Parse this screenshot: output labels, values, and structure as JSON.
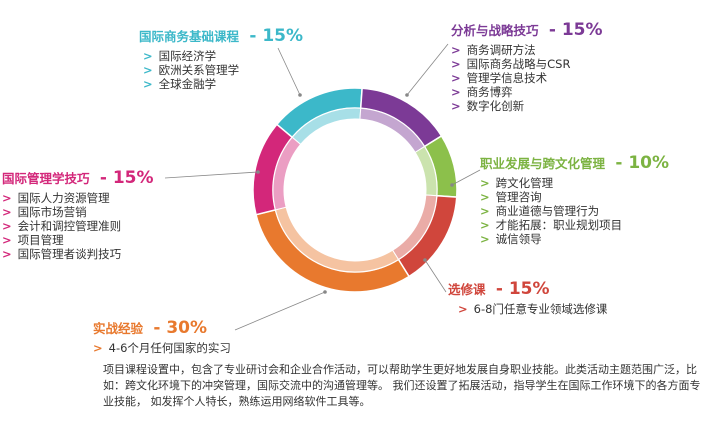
{
  "chart_data": {
    "type": "donut",
    "title": "",
    "segments": [
      {
        "name": "国际商务基础课程",
        "value": 15,
        "color": "#3cb8c9",
        "items": [
          "国际经济学",
          "欧洲关系管理学",
          "全球金融学"
        ]
      },
      {
        "name": "分析与战略技巧",
        "value": 15,
        "color": "#7c3a96",
        "items": [
          "商务调研方法",
          "国际商务战略与CSR",
          "管理学信息技术",
          "商务博弈",
          "数字化创新"
        ]
      },
      {
        "name": "职业发展与跨文化管理",
        "value": 10,
        "color": "#8cc04b",
        "items": [
          "跨文化管理",
          "管理咨询",
          "商业道德与管理行为",
          "才能拓展：职业规划项目",
          "诚信领导"
        ]
      },
      {
        "name": "选修课",
        "value": 15,
        "color": "#d0463c",
        "items": [
          "6-8门任意专业领域选修课"
        ]
      },
      {
        "name": "实战经验",
        "value": 30,
        "color": "#e8792e",
        "items": [
          "4-6个月任何国家的实习"
        ]
      },
      {
        "name": "国际管理学技巧",
        "value": 15,
        "color": "#d3277a",
        "items": [
          "国际人力资源管理",
          "国际市场营销",
          "会计和调控管理准则",
          "项目管理",
          "国际管理者谈判技巧"
        ]
      }
    ],
    "labels": [
      "国际商务基础课程",
      "分析与战略技巧",
      "职业发展与跨文化管理",
      "选修课",
      "实战经验",
      "国际管理学技巧"
    ],
    "values_text": [
      "- 15%",
      "- 15%",
      "- 10%",
      "- 15%",
      "- 30%",
      "- 15%"
    ]
  },
  "footer": {
    "text": "项目课程设置中，包含了专业研讨会和企业合作活动，可以帮助学生更好地发展自身职业技能。此类活动主题范围广泛，比如：跨文化环境下的冲突管理，国际交流中的沟通管理等。 我们还设置了拓展活动，指导学生在国际工作环境下的各方面专业技能， 如发挥个人特长，熟练运用网络软件工具等。"
  }
}
